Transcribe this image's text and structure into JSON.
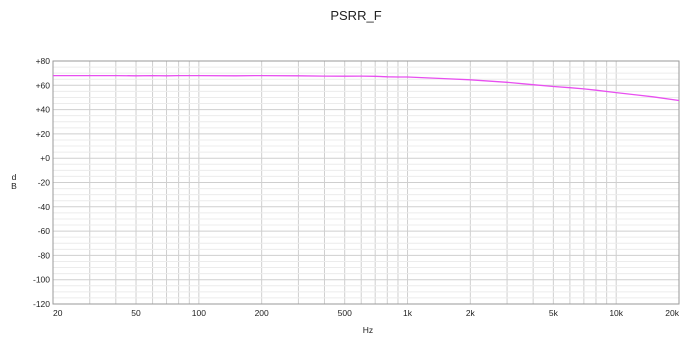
{
  "chart_data": {
    "type": "line",
    "title": "PSRR_F",
    "xlabel": "Hz",
    "ylabel": "dB",
    "xscale": "log",
    "xlim": [
      20,
      20000
    ],
    "ylim": [
      -120,
      80
    ],
    "grid": true,
    "legend": "none",
    "x_ticks": [
      20,
      50,
      100,
      200,
      500,
      1000,
      2000,
      5000,
      10000,
      20000
    ],
    "x_tick_labels": [
      "20",
      "50",
      "100",
      "200",
      "500",
      "1k",
      "2k",
      "5k",
      "10k",
      "20k"
    ],
    "y_ticks": [
      -120,
      -100,
      -80,
      -60,
      -40,
      -20,
      0,
      20,
      40,
      60,
      80
    ],
    "y_tick_labels": [
      "-120",
      "-100",
      "-80",
      "-60",
      "-40",
      "-20",
      "+0",
      "+20",
      "+40",
      "+60",
      "+80"
    ],
    "series": [
      {
        "color": "#e84ff0",
        "x": [
          20,
          30,
          40,
          50,
          60,
          70,
          80,
          90,
          100,
          150,
          200,
          300,
          400,
          500,
          600,
          700,
          800,
          900,
          1000,
          1500,
          2000,
          3000,
          4000,
          5000,
          6000,
          7000,
          8000,
          10000,
          15000,
          20000
        ],
        "y": [
          68,
          68,
          68,
          67.8,
          68,
          67.8,
          68,
          68,
          68,
          67.8,
          68,
          67.8,
          67.6,
          67.5,
          67.6,
          67.4,
          67,
          66.8,
          66.8,
          65.5,
          64.5,
          62.5,
          60.5,
          59,
          58,
          57,
          56,
          54,
          50.5,
          47.5
        ]
      }
    ]
  }
}
